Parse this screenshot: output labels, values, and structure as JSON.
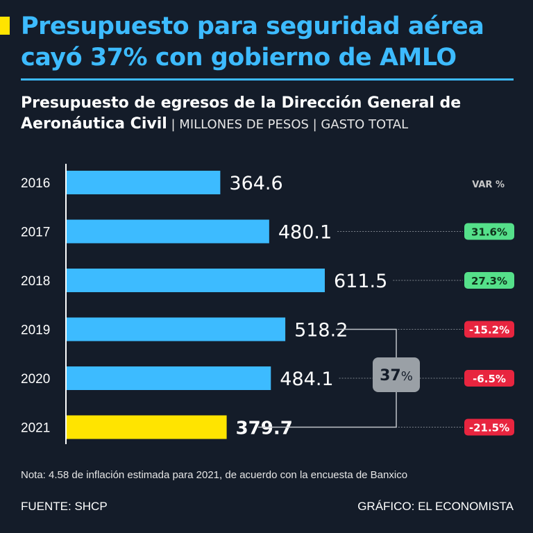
{
  "header": {
    "title_line1": "Presupuesto para seguridad aérea",
    "title_line2": "cayó 37% con gobierno de AMLO",
    "subtitle_bold_line1": "Presupuesto de egresos de la Dirección General de",
    "subtitle_bold_line2": "Aeronáutica Civil",
    "subtitle_light": " | MILLONES DE PESOS | GASTO TOTAL"
  },
  "colors": {
    "background": "#141c29",
    "bar": "#3dbbff",
    "highlight_bar": "#ffe400",
    "positive_badge": "#55e08a",
    "negative_badge": "#e8253f",
    "summary_box": "#9aa0a6"
  },
  "chart_data": {
    "type": "bar",
    "orientation": "horizontal",
    "categories": [
      "2016",
      "2017",
      "2018",
      "2019",
      "2020",
      "2021"
    ],
    "values": [
      364.6,
      480.1,
      611.5,
      518.2,
      484.1,
      379.7
    ],
    "value_labels": [
      "364.6",
      "480.1",
      "611.5",
      "518.2",
      "484.1",
      "379.7"
    ],
    "highlight_category": "2021",
    "variation_header": "VAR %",
    "variation": [
      "",
      "31.6%",
      "27.3%",
      "-15.2%",
      "-6.5%",
      "-21.5%"
    ],
    "variation_sign": [
      0,
      1,
      1,
      -1,
      -1,
      -1
    ],
    "summary_label": "37",
    "summary_unit": "%",
    "summary_span": [
      "2019",
      "2021"
    ]
  },
  "footer": {
    "note": "Nota: 4.58 de inflación estimada para 2021, de acuerdo con la encuesta de Banxico",
    "source": "FUENTE: SHCP",
    "credit": "GRÁFICO: EL ECONOMISTA"
  }
}
